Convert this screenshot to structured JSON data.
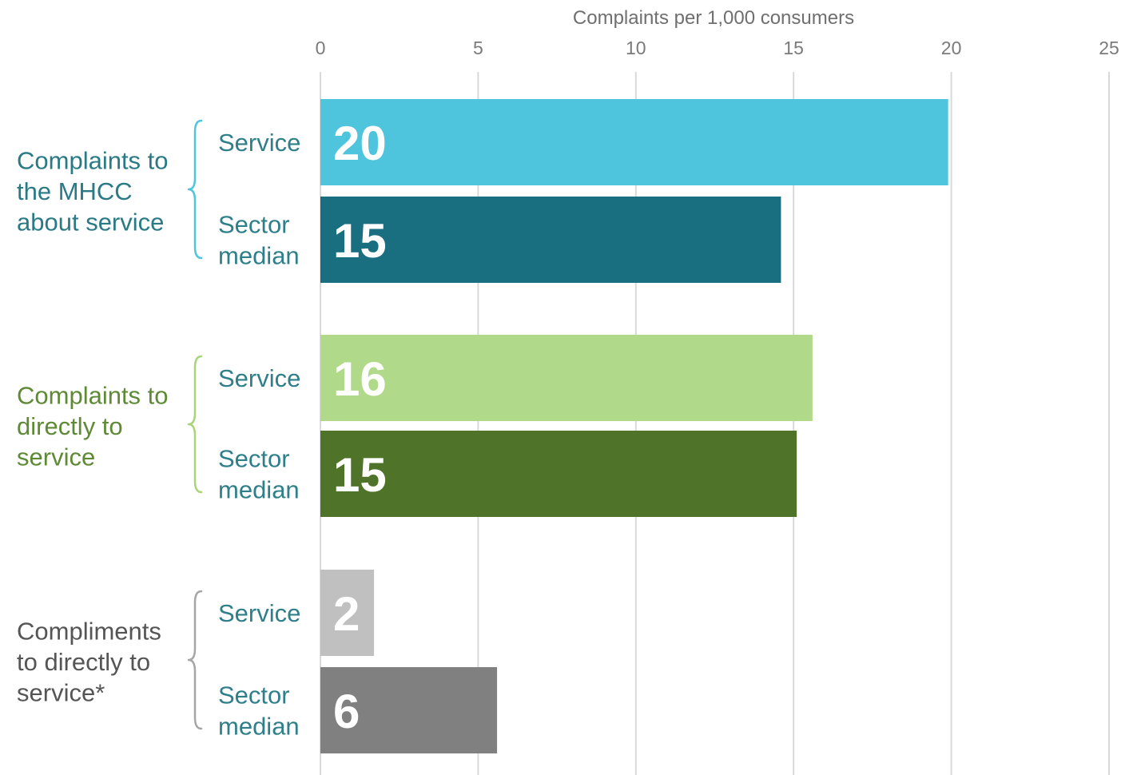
{
  "chart_data": {
    "type": "bar",
    "orientation": "horizontal",
    "xlabel": "Complaints per 1,000 consumers",
    "xlim": [
      0,
      25
    ],
    "xticks": [
      0,
      5,
      10,
      15,
      20,
      25
    ],
    "grid": true,
    "groups": [
      {
        "name": "Complaints to the MHCC about service",
        "label_lines": [
          "Complaints to",
          "the MHCC",
          "about service"
        ],
        "label_color": "#2a7a85",
        "brace_color": "#4fc5dd",
        "bars": [
          {
            "category": "Service",
            "label_lines": [
              "Service"
            ],
            "value": 19.9,
            "display": "20",
            "color": "#4fc5dd"
          },
          {
            "category": "Sector median",
            "label_lines": [
              "Sector",
              "median"
            ],
            "value": 14.6,
            "display": "15",
            "color": "#196f80"
          }
        ]
      },
      {
        "name": "Complaints to directly to service",
        "label_lines": [
          "Complaints to",
          "directly to",
          "service"
        ],
        "label_color": "#5e8a36",
        "brace_color": "#a8d47a",
        "bars": [
          {
            "category": "Service",
            "label_lines": [
              "Service"
            ],
            "value": 15.6,
            "display": "16",
            "color": "#b0d989"
          },
          {
            "category": "Sector median",
            "label_lines": [
              "Sector",
              "median"
            ],
            "value": 15.1,
            "display": "15",
            "color": "#4f7429"
          }
        ]
      },
      {
        "name": "Compliments to directly to service*",
        "label_lines": [
          "Compliments",
          "to directly to",
          "service*"
        ],
        "label_color": "#555555",
        "brace_color": "#a6a6a6",
        "bars": [
          {
            "category": "Service",
            "label_lines": [
              "Service"
            ],
            "value": 1.7,
            "display": "2",
            "color": "#c0c0c0"
          },
          {
            "category": "Sector median",
            "label_lines": [
              "Sector",
              "median"
            ],
            "value": 5.6,
            "display": "6",
            "color": "#808080"
          }
        ]
      }
    ]
  },
  "colors": {
    "category_label": "#2e7f8a",
    "grid": "#d9d9d9",
    "value_text": "#ffffff"
  }
}
